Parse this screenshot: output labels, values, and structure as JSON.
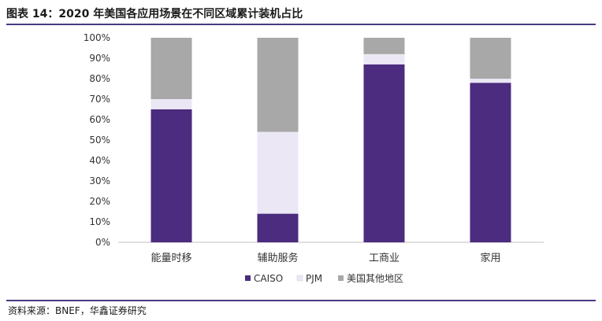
{
  "header": {
    "title": "图表 14：2020 年美国各应用场景在不同区域累计装机占比"
  },
  "footer": {
    "source": "资料来源：BNEF，华鑫证券研究"
  },
  "chart_data": {
    "type": "bar",
    "stacked": true,
    "percent_axis": true,
    "categories": [
      "能量时移",
      "辅助服务",
      "工商业",
      "家用"
    ],
    "series": [
      {
        "name": "CAISO",
        "color": "#4b2c7f",
        "values": [
          65,
          14,
          87,
          78
        ]
      },
      {
        "name": "PJM",
        "color": "#ebe7f5",
        "values": [
          5,
          40,
          5,
          2
        ]
      },
      {
        "name": "美国其他地区",
        "color": "#a8a8a8",
        "values": [
          30,
          46,
          8,
          20
        ]
      }
    ],
    "ylim": [
      0,
      100
    ],
    "yticks": [
      "0%",
      "10%",
      "20%",
      "30%",
      "40%",
      "50%",
      "60%",
      "70%",
      "80%",
      "90%",
      "100%"
    ],
    "grid": false,
    "legend": "bottom-center"
  }
}
